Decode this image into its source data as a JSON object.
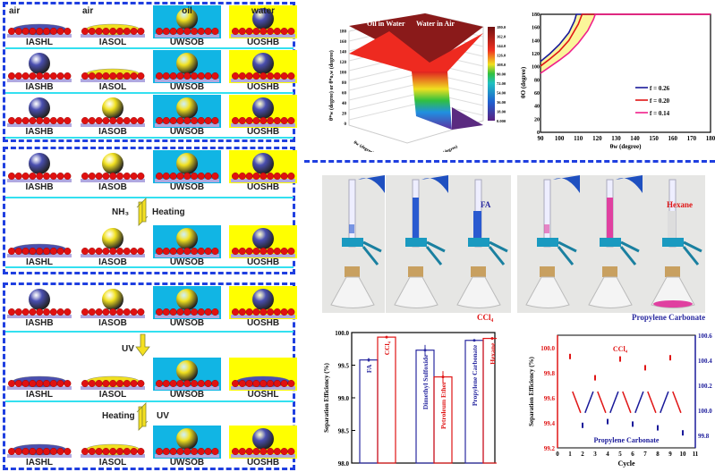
{
  "schematic": {
    "box1": [
      [
        {
          "label": "IASHL",
          "medium": "air",
          "bg": "none",
          "drop": "water-lens"
        },
        {
          "label": "IASOL",
          "medium": "air",
          "bg": "none",
          "drop": "oil-lens"
        },
        {
          "label": "UWSOB",
          "medium": "oil",
          "bg": "water",
          "drop": "oil-sphere"
        },
        {
          "label": "UOSHB",
          "medium": "water",
          "bg": "oil",
          "drop": "water-sphere"
        }
      ],
      [
        {
          "label": "IASHB",
          "bg": "none",
          "drop": "water-sphere"
        },
        {
          "label": "IASOL",
          "bg": "none",
          "drop": "oil-lens"
        },
        {
          "label": "UWSOB",
          "bg": "water",
          "drop": "oil-sphere"
        },
        {
          "label": "UOSHB",
          "bg": "oil",
          "drop": "water-sphere"
        }
      ],
      [
        {
          "label": "IASHB",
          "bg": "none",
          "drop": "water-sphere"
        },
        {
          "label": "IASOB",
          "bg": "none",
          "drop": "oil-sphere"
        },
        {
          "label": "UWSOB",
          "bg": "water",
          "drop": "oil-sphere"
        },
        {
          "label": "UOSHB",
          "bg": "oil",
          "drop": "water-sphere"
        }
      ]
    ],
    "box2": [
      [
        {
          "label": "IASHB",
          "bg": "none",
          "drop": "water-sphere"
        },
        {
          "label": "IASOB",
          "bg": "none",
          "drop": "oil-sphere"
        },
        {
          "label": "UWSOB",
          "bg": "water",
          "drop": "oil-sphere"
        },
        {
          "label": "UOSHB",
          "bg": "oil",
          "drop": "water-sphere"
        }
      ],
      [
        {
          "label": "IASHL",
          "bg": "none",
          "drop": "water-lens"
        },
        {
          "label": "IASOB",
          "bg": "none",
          "drop": "oil-sphere"
        },
        {
          "label": "UWSOB",
          "bg": "water",
          "drop": "oil-sphere"
        },
        {
          "label": "UOSHB",
          "bg": "oil",
          "drop": "water-sphere"
        }
      ]
    ],
    "box2_arrow": {
      "left": "NH₃",
      "right": "Heating"
    },
    "box3": [
      [
        {
          "label": "IASHB",
          "bg": "none",
          "drop": "water-sphere"
        },
        {
          "label": "IASOB",
          "bg": "none",
          "drop": "oil-sphere"
        },
        {
          "label": "UWSOB",
          "bg": "water",
          "drop": "oil-sphere"
        },
        {
          "label": "UOSHB",
          "bg": "oil",
          "drop": "water-sphere"
        }
      ],
      [
        {
          "label": "IASHL",
          "bg": "none",
          "drop": "water-lens"
        },
        {
          "label": "IASOL",
          "bg": "none",
          "drop": "oil-lens"
        },
        {
          "label": "UWSOB",
          "bg": "water",
          "drop": "oil-sphere"
        },
        {
          "label": "UOSHL",
          "bg": "oil",
          "drop": "water-lens"
        }
      ],
      [
        {
          "label": "IASHL",
          "bg": "none",
          "drop": "water-lens"
        },
        {
          "label": "IASOL",
          "bg": "none",
          "drop": "oil-lens"
        },
        {
          "label": "UWSOB",
          "bg": "water",
          "drop": "oil-sphere"
        },
        {
          "label": "UOSHB",
          "bg": "oil",
          "drop": "water-sphere"
        }
      ]
    ],
    "box3_arrow1": {
      "left": "UV"
    },
    "box3_arrow2": {
      "left": "Heating",
      "right": "UV"
    },
    "colors": {
      "water": "#11b5e4",
      "oil": "#ffff00",
      "water_drop": "#4a4fb0",
      "oil_drop": "#f0e020",
      "particles": "#e01010",
      "substrate": "#b0a8e0",
      "frame": "#1f3fe0",
      "divider": "#33e0f0"
    }
  },
  "photos": {
    "labels": {
      "fa": "FA",
      "ccl4": "CCl₄",
      "hexane": "Hexane",
      "pc": "Propylene Carbonate"
    }
  },
  "chart_data": [
    {
      "type": "surface3d",
      "annotations": [
        "Oil in Water",
        "Water in Air"
      ],
      "zlabel": "θ*w (degree) or θ*o,w (degree)",
      "xlabel": "θo (degree)",
      "ylabel": "θw (degree)",
      "zticks": [
        "0",
        "20",
        "40",
        "60",
        "80",
        "100",
        "120",
        "140",
        "160",
        "180"
      ],
      "colorbar": {
        "label": "θO (degree)",
        "ticks": [
          "0.000",
          "18.00",
          "36.00",
          "54.00",
          "72.00",
          "90.00",
          "108.0",
          "126.0",
          "144.0",
          "162.0",
          "180.0"
        ]
      }
    },
    {
      "type": "line",
      "xlabel": "θw (degree)",
      "ylabel": "θO (degree)",
      "xlim": [
        90,
        180
      ],
      "ylim": [
        0,
        180
      ],
      "xticks": [
        90,
        100,
        110,
        120,
        130,
        140,
        150,
        160,
        170,
        180
      ],
      "yticks": [
        0,
        20,
        40,
        60,
        80,
        100,
        120,
        140,
        160,
        180
      ],
      "series": [
        {
          "name": "f = 0.26",
          "color": "#1a1a9a",
          "x": [
            90,
            95,
            100,
            105,
            108,
            109,
            180
          ],
          "y": [
            108,
            120,
            134,
            152,
            170,
            180,
            180
          ]
        },
        {
          "name": "f = 0.20",
          "color": "#e01515",
          "x": [
            90,
            95,
            100,
            105,
            110,
            112,
            180
          ],
          "y": [
            101,
            112,
            124,
            140,
            165,
            180,
            180
          ]
        },
        {
          "name": "f = 0.14",
          "color": "#f0208a",
          "x": [
            90,
            95,
            100,
            105,
            110,
            115,
            118,
            119,
            180
          ],
          "y": [
            90,
            100,
            110,
            121,
            136,
            155,
            172,
            180,
            180
          ]
        }
      ],
      "fill": "#fbf59a",
      "legend": "bottom-right"
    },
    {
      "type": "bar",
      "ylabel": "Separation Efficiency (%)",
      "ylim": [
        98.0,
        100.0
      ],
      "yticks": [
        "98.0",
        "98.5",
        "99.0",
        "99.5",
        "100.0"
      ],
      "categories": [
        "FA",
        "CCl₄",
        "Dimethyl Sulfoxide",
        "Petroleum Ether",
        "Propylene Carbonate",
        "Hexane"
      ],
      "values": [
        99.58,
        99.93,
        99.73,
        99.32,
        99.88,
        99.91
      ],
      "errors": [
        0.03,
        0.01,
        0.08,
        0.09,
        0.01,
        0.02
      ],
      "colors": [
        "#2a2aa0",
        "#e01515",
        "#2a2aa0",
        "#e01515",
        "#2a2aa0",
        "#e01515"
      ]
    },
    {
      "type": "scatter",
      "xlabel": "Cycle",
      "ylabel": "Separation Efficiency (%)",
      "xlim": [
        0,
        11
      ],
      "ylim": [
        99.2,
        100.1
      ],
      "y2lim": [
        99.7,
        100.6
      ],
      "xticks": [
        0,
        1,
        2,
        3,
        4,
        5,
        6,
        7,
        8,
        9,
        10,
        11
      ],
      "yticks": [
        "99.2",
        "99.4",
        "99.6",
        "99.8",
        "100.0"
      ],
      "y2ticks": [
        "99.8",
        "100.0",
        "100.2",
        "100.4",
        "100.6"
      ],
      "series": [
        {
          "name": "CCl₄",
          "axis": "left",
          "color": "#e01515",
          "x": [
            1,
            3,
            5,
            7,
            9
          ],
          "y": [
            99.93,
            99.76,
            99.91,
            99.84,
            99.92
          ]
        },
        {
          "name": "Propylene Carbonate",
          "axis": "right",
          "color": "#1a1a9a",
          "x": [
            2,
            4,
            6,
            8,
            10
          ],
          "y": [
            99.88,
            99.91,
            99.89,
            99.86,
            99.82
          ]
        }
      ]
    }
  ]
}
